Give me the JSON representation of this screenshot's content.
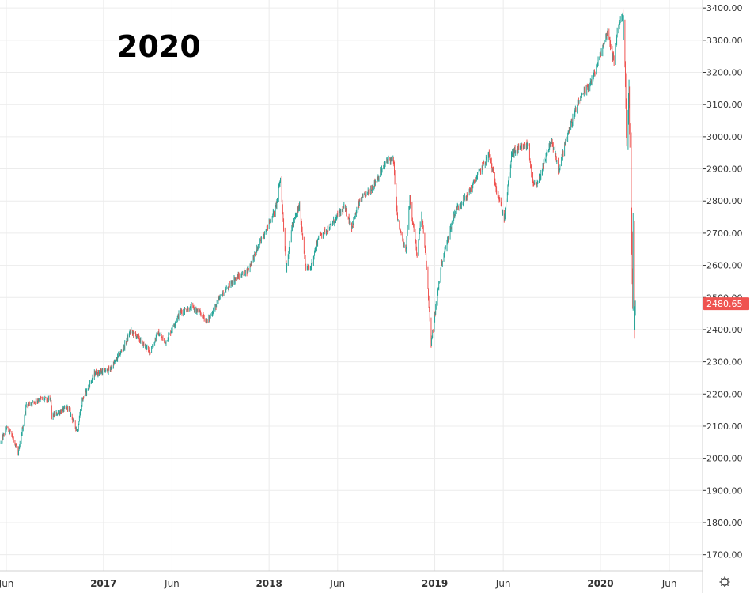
{
  "chart_data": {
    "type": "candlestick",
    "title": "2020",
    "xlabel": "",
    "ylabel": "",
    "ylim": [
      1650,
      3425
    ],
    "xlim": [
      "2016-05-18",
      "2020-08-13"
    ],
    "x_ticks": [
      {
        "label": "Jun",
        "date": "2016-06-01"
      },
      {
        "label": "2017",
        "date": "2017-01-01"
      },
      {
        "label": "Jun",
        "date": "2017-06-01"
      },
      {
        "label": "2018",
        "date": "2018-01-01"
      },
      {
        "label": "Jun",
        "date": "2018-06-01"
      },
      {
        "label": "2019",
        "date": "2019-01-01"
      },
      {
        "label": "Jun",
        "date": "2019-06-01"
      },
      {
        "label": "2020",
        "date": "2020-01-01"
      },
      {
        "label": "Jun",
        "date": "2020-06-01"
      }
    ],
    "y_ticks": [
      1700,
      1800,
      1900,
      2000,
      2100,
      2200,
      2300,
      2400,
      2500,
      2600,
      2700,
      2800,
      2900,
      3000,
      3100,
      3200,
      3300,
      3400
    ],
    "y_tick_labels": [
      "1700.00",
      "1800.00",
      "1900.00",
      "2000.00",
      "2100.00",
      "2200.00",
      "2300.00",
      "2400.00",
      "2500.00",
      "2600.00",
      "2700.00",
      "2800.00",
      "2900.00",
      "3000.00",
      "3100.00",
      "3200.00",
      "3300.00",
      "3400.00"
    ],
    "last_price": 2480.65,
    "last_price_label": "2480.65",
    "grid": true,
    "colors": {
      "up": "#26a69a",
      "down": "#ef5350",
      "grid": "#ececec",
      "axis": "#333333",
      "price_tag": "#ef5350"
    },
    "series": [
      {
        "x": [
          "2016-05-20",
          "2016-06-01",
          "2016-06-10",
          "2016-06-24",
          "2016-06-27",
          "2016-07-15",
          "2016-08-15",
          "2016-09-07",
          "2016-09-09",
          "2016-10-15",
          "2016-11-04",
          "2016-11-15",
          "2016-12-13",
          "2017-01-15",
          "2017-02-15",
          "2017-03-01",
          "2017-03-15",
          "2017-04-13",
          "2017-05-01",
          "2017-05-17",
          "2017-06-19",
          "2017-07-15",
          "2017-08-10",
          "2017-08-18",
          "2017-09-15",
          "2017-10-15",
          "2017-11-15",
          "2017-12-15",
          "2018-01-15",
          "2018-01-26",
          "2018-02-08",
          "2018-02-20",
          "2018-03-09",
          "2018-03-23",
          "2018-04-02",
          "2018-04-20",
          "2018-05-15",
          "2018-06-15",
          "2018-07-02",
          "2018-07-20",
          "2018-08-15",
          "2018-09-20",
          "2018-10-02",
          "2018-10-11",
          "2018-10-29",
          "2018-11-07",
          "2018-11-23",
          "2018-12-03",
          "2018-12-14",
          "2018-12-24",
          "2019-01-15",
          "2019-02-15",
          "2019-03-15",
          "2019-04-15",
          "2019-04-30",
          "2019-05-15",
          "2019-06-03",
          "2019-06-20",
          "2019-07-26",
          "2019-08-05",
          "2019-08-15",
          "2019-09-15",
          "2019-10-02",
          "2019-10-15",
          "2019-11-15",
          "2019-12-15",
          "2020-01-02",
          "2020-01-17",
          "2020-01-31",
          "2020-02-07",
          "2020-02-19",
          "2020-02-24",
          "2020-02-28",
          "2020-03-04",
          "2020-03-09",
          "2020-03-12",
          "2020-03-13",
          "2020-03-16",
          "2020-03-18"
        ],
        "close": [
          2050,
          2095,
          2080,
          2035,
          2010,
          2165,
          2185,
          2180,
          2130,
          2160,
          2085,
          2180,
          2265,
          2275,
          2345,
          2395,
          2380,
          2330,
          2390,
          2360,
          2455,
          2470,
          2440,
          2425,
          2500,
          2555,
          2585,
          2680,
          2775,
          2870,
          2590,
          2720,
          2785,
          2590,
          2590,
          2690,
          2720,
          2780,
          2720,
          2800,
          2840,
          2930,
          2925,
          2740,
          2640,
          2810,
          2630,
          2760,
          2600,
          2355,
          2600,
          2770,
          2820,
          2905,
          2945,
          2850,
          2745,
          2950,
          2975,
          2850,
          2850,
          2990,
          2890,
          2985,
          3110,
          3180,
          3260,
          3330,
          3230,
          3330,
          3385,
          3230,
          2955,
          3130,
          2750,
          2480,
          2710,
          2385,
          2480.65
        ]
      }
    ]
  }
}
